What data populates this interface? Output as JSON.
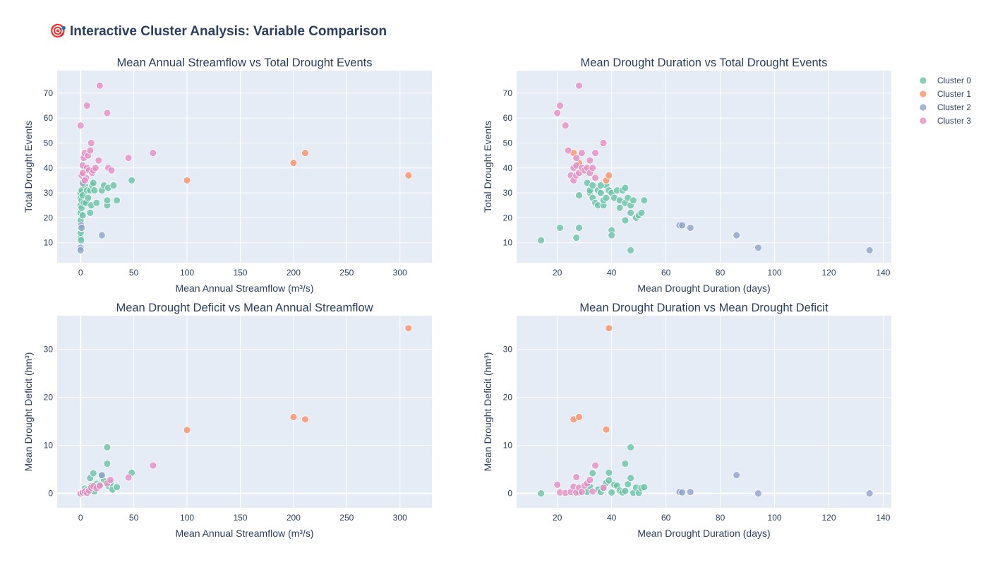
{
  "title": "🎯 Interactive Cluster Analysis: Variable Comparison",
  "legend": {
    "placement": "top-right",
    "entries": [
      "Cluster 0",
      "Cluster 1",
      "Cluster 2",
      "Cluster 3"
    ]
  },
  "colors": {
    "Cluster 0": "#66c2a5",
    "Cluster 1": "#fc8d62",
    "Cluster 2": "#8da0cb",
    "Cluster 3": "#e78ac3",
    "plot_bg": "#e5ecf6",
    "text": "#2a3f5f"
  },
  "chart_data": [
    {
      "type": "scatter",
      "title": "Mean Annual Streamflow vs Total Drought Events",
      "xlabel": "Mean Annual Streamflow (m³/s)",
      "ylabel": "Total Drought Events",
      "xlim": [
        -22,
        330
      ],
      "ylim": [
        2,
        79
      ],
      "xticks": [
        0,
        50,
        100,
        150,
        200,
        250,
        300
      ],
      "yticks": [
        10,
        20,
        30,
        40,
        50,
        60,
        70
      ],
      "grid": true,
      "series": [
        {
          "name": "Cluster 0",
          "points": [
            [
              0,
              12
            ],
            [
              0,
              14
            ],
            [
              0,
              16
            ],
            [
              0,
              19
            ],
            [
              0,
              22
            ],
            [
              0,
              25
            ],
            [
              0,
              28
            ],
            [
              0,
              30
            ],
            [
              0.5,
              11
            ],
            [
              1,
              24
            ],
            [
              1,
              27
            ],
            [
              1,
              31
            ],
            [
              2,
              29
            ],
            [
              2,
              21
            ],
            [
              3,
              26
            ],
            [
              4,
              33
            ],
            [
              5,
              26
            ],
            [
              6,
              31
            ],
            [
              7,
              28
            ],
            [
              9,
              31
            ],
            [
              9,
              22
            ],
            [
              10,
              25
            ],
            [
              11,
              33
            ],
            [
              12,
              34
            ],
            [
              13,
              31
            ],
            [
              15,
              26
            ],
            [
              20,
              31
            ],
            [
              22,
              33
            ],
            [
              25,
              25
            ],
            [
              25,
              27
            ],
            [
              26,
              32
            ],
            [
              31,
              33
            ],
            [
              34,
              27
            ],
            [
              48,
              35
            ]
          ]
        },
        {
          "name": "Cluster 1",
          "points": [
            [
              100,
              35
            ],
            [
              200,
              42
            ],
            [
              211,
              46
            ],
            [
              308,
              37
            ]
          ]
        },
        {
          "name": "Cluster 2",
          "points": [
            [
              0,
              8
            ],
            [
              0,
              7
            ],
            [
              0.5,
              17
            ],
            [
              1,
              16
            ],
            [
              2,
              34
            ],
            [
              20,
              13
            ]
          ]
        },
        {
          "name": "Cluster 3",
          "points": [
            [
              0,
              57
            ],
            [
              1,
              37
            ],
            [
              2,
              41
            ],
            [
              3,
              44
            ],
            [
              4,
              46
            ],
            [
              5,
              36
            ],
            [
              6,
              40
            ],
            [
              7,
              45
            ],
            [
              8,
              39
            ],
            [
              9,
              47
            ],
            [
              10,
              50
            ],
            [
              11,
              38
            ],
            [
              12,
              39
            ],
            [
              14,
              40
            ],
            [
              17,
              43
            ],
            [
              18,
              73
            ],
            [
              6,
              65
            ],
            [
              25,
              62
            ],
            [
              26,
              40
            ],
            [
              29,
              39
            ],
            [
              45,
              44
            ],
            [
              68,
              46
            ],
            [
              2,
              38
            ],
            [
              4,
              35
            ]
          ]
        }
      ]
    },
    {
      "type": "scatter",
      "title": "Mean Drought Duration vs Total Drought Events",
      "xlabel": "Mean Drought Duration (days)",
      "ylabel": "Total Drought Events",
      "xlim": [
        5,
        143
      ],
      "ylim": [
        2,
        79
      ],
      "xticks": [
        20,
        40,
        60,
        80,
        100,
        120,
        140
      ],
      "yticks": [
        10,
        20,
        30,
        40,
        50,
        60,
        70
      ],
      "grid": true,
      "series": [
        {
          "name": "Cluster 0",
          "points": [
            [
              14,
              11
            ],
            [
              21,
              16
            ],
            [
              27,
              12
            ],
            [
              28,
              29
            ],
            [
              28,
              16
            ],
            [
              31,
              34
            ],
            [
              32,
              30
            ],
            [
              32,
              31
            ],
            [
              33,
              28
            ],
            [
              34,
              26
            ],
            [
              35,
              25
            ],
            [
              35,
              31
            ],
            [
              36,
              30
            ],
            [
              37,
              25
            ],
            [
              37,
              27
            ],
            [
              38,
              28
            ],
            [
              38,
              33
            ],
            [
              39,
              31
            ],
            [
              40,
              30
            ],
            [
              40,
              15
            ],
            [
              40,
              13
            ],
            [
              41,
              28
            ],
            [
              42,
              31
            ],
            [
              43,
              24
            ],
            [
              43,
              27
            ],
            [
              44,
              31
            ],
            [
              45,
              32
            ],
            [
              45,
              26
            ],
            [
              46,
              28
            ],
            [
              47,
              7
            ],
            [
              47,
              22
            ],
            [
              47,
              25
            ],
            [
              48,
              27
            ],
            [
              49,
              20
            ],
            [
              50,
              21
            ],
            [
              51,
              22
            ],
            [
              52,
              27
            ],
            [
              45,
              19
            ],
            [
              33,
              33
            ],
            [
              36,
              33
            ]
          ]
        },
        {
          "name": "Cluster 1",
          "points": [
            [
              26,
              46
            ],
            [
              28,
              42
            ],
            [
              38,
              35
            ],
            [
              39,
              37
            ]
          ]
        },
        {
          "name": "Cluster 2",
          "points": [
            [
              65,
              17
            ],
            [
              66,
              17
            ],
            [
              69,
              16
            ],
            [
              86,
              13
            ],
            [
              94,
              8
            ],
            [
              135,
              7
            ]
          ]
        },
        {
          "name": "Cluster 3",
          "points": [
            [
              20,
              62
            ],
            [
              21,
              65
            ],
            [
              23,
              57
            ],
            [
              24,
              47
            ],
            [
              25,
              37
            ],
            [
              26,
              40
            ],
            [
              26,
              35
            ],
            [
              27,
              44
            ],
            [
              27,
              37
            ],
            [
              27,
              41
            ],
            [
              28,
              38
            ],
            [
              28,
              73
            ],
            [
              29,
              46
            ],
            [
              29,
              40
            ],
            [
              30,
              39
            ],
            [
              31,
              40
            ],
            [
              32,
              43
            ],
            [
              32,
              38
            ],
            [
              33,
              40
            ],
            [
              34,
              36
            ],
            [
              34,
              46
            ],
            [
              37,
              50
            ]
          ]
        }
      ]
    },
    {
      "type": "scatter",
      "title": "Mean Drought Deficit vs Mean Annual Streamflow",
      "xlabel": "Mean Annual Streamflow (m³/s)",
      "ylabel": "Mean Drought Deficit (hm³)",
      "xlim": [
        -22,
        330
      ],
      "ylim": [
        -3,
        37
      ],
      "xticks": [
        0,
        50,
        100,
        150,
        200,
        250,
        300
      ],
      "yticks": [
        0,
        10,
        20,
        30
      ],
      "grid": true,
      "series": [
        {
          "name": "Cluster 0",
          "points": [
            [
              0,
              0
            ],
            [
              1,
              0.3
            ],
            [
              3,
              0.5
            ],
            [
              4,
              1
            ],
            [
              6,
              0.8
            ],
            [
              9,
              3.2
            ],
            [
              10,
              1.5
            ],
            [
              12,
              4.2
            ],
            [
              13,
              0.4
            ],
            [
              15,
              2
            ],
            [
              20,
              3.6
            ],
            [
              22,
              2.6
            ],
            [
              25,
              9.6
            ],
            [
              25,
              6.2
            ],
            [
              26,
              1.6
            ],
            [
              30,
              0.8
            ],
            [
              34,
              1.3
            ],
            [
              48,
              4.3
            ],
            [
              18,
              1.8
            ],
            [
              28,
              2.1
            ]
          ]
        },
        {
          "name": "Cluster 1",
          "points": [
            [
              100,
              13.2
            ],
            [
              200,
              15.9
            ],
            [
              211,
              15.4
            ],
            [
              308,
              34.4
            ]
          ]
        },
        {
          "name": "Cluster 2",
          "points": [
            [
              0,
              0
            ],
            [
              1,
              0.1
            ],
            [
              2,
              0.2
            ],
            [
              20,
              3.8
            ]
          ]
        },
        {
          "name": "Cluster 3",
          "points": [
            [
              0,
              0
            ],
            [
              2,
              0.2
            ],
            [
              4,
              0.4
            ],
            [
              6,
              0.1
            ],
            [
              8,
              0.6
            ],
            [
              10,
              1.2
            ],
            [
              12,
              1.5
            ],
            [
              15,
              1.1
            ],
            [
              18,
              1.6
            ],
            [
              25,
              2.1
            ],
            [
              28,
              2.8
            ],
            [
              45,
              3.3
            ],
            [
              68,
              5.8
            ]
          ]
        }
      ]
    },
    {
      "type": "scatter",
      "title": "Mean Drought Duration vs Mean Drought Deficit",
      "xlabel": "Mean Drought Duration (days)",
      "ylabel": "Mean Drought Deficit (hm³)",
      "xlim": [
        5,
        143
      ],
      "ylim": [
        -3,
        37
      ],
      "xticks": [
        20,
        40,
        60,
        80,
        100,
        120,
        140
      ],
      "yticks": [
        0,
        10,
        20,
        30
      ],
      "grid": true,
      "series": [
        {
          "name": "Cluster 0",
          "points": [
            [
              14,
              0
            ],
            [
              28,
              0.2
            ],
            [
              31,
              0.3
            ],
            [
              32,
              1.4
            ],
            [
              33,
              4.2
            ],
            [
              35,
              0.8
            ],
            [
              36,
              0.3
            ],
            [
              37,
              1.1
            ],
            [
              38,
              2.2
            ],
            [
              39,
              4.3
            ],
            [
              39,
              2.7
            ],
            [
              40,
              0.2
            ],
            [
              41,
              1.8
            ],
            [
              42,
              1.6
            ],
            [
              43,
              0.6
            ],
            [
              44,
              0.2
            ],
            [
              45,
              6.2
            ],
            [
              45,
              0.5
            ],
            [
              46,
              1.9
            ],
            [
              47,
              9.6
            ],
            [
              47,
              3.2
            ],
            [
              48,
              0.1
            ],
            [
              49,
              1.2
            ],
            [
              50,
              0.1
            ],
            [
              51,
              1.1
            ],
            [
              52,
              1.3
            ]
          ]
        },
        {
          "name": "Cluster 1",
          "points": [
            [
              26,
              15.4
            ],
            [
              28,
              15.9
            ],
            [
              38,
              13.3
            ],
            [
              39,
              34.4
            ]
          ]
        },
        {
          "name": "Cluster 2",
          "points": [
            [
              65,
              0.3
            ],
            [
              66,
              0.2
            ],
            [
              69,
              0.3
            ],
            [
              86,
              3.8
            ],
            [
              94,
              0
            ],
            [
              135,
              0
            ]
          ]
        },
        {
          "name": "Cluster 3",
          "points": [
            [
              20,
              1.8
            ],
            [
              21,
              0.2
            ],
            [
              23,
              0.1
            ],
            [
              25,
              0.3
            ],
            [
              26,
              1.4
            ],
            [
              27,
              3.4
            ],
            [
              27,
              0.2
            ],
            [
              28,
              1.2
            ],
            [
              29,
              0.3
            ],
            [
              30,
              1.6
            ],
            [
              31,
              2.1
            ],
            [
              32,
              2.8
            ],
            [
              33,
              0.4
            ],
            [
              34,
              5.8
            ],
            [
              37,
              1.2
            ]
          ]
        }
      ]
    }
  ]
}
